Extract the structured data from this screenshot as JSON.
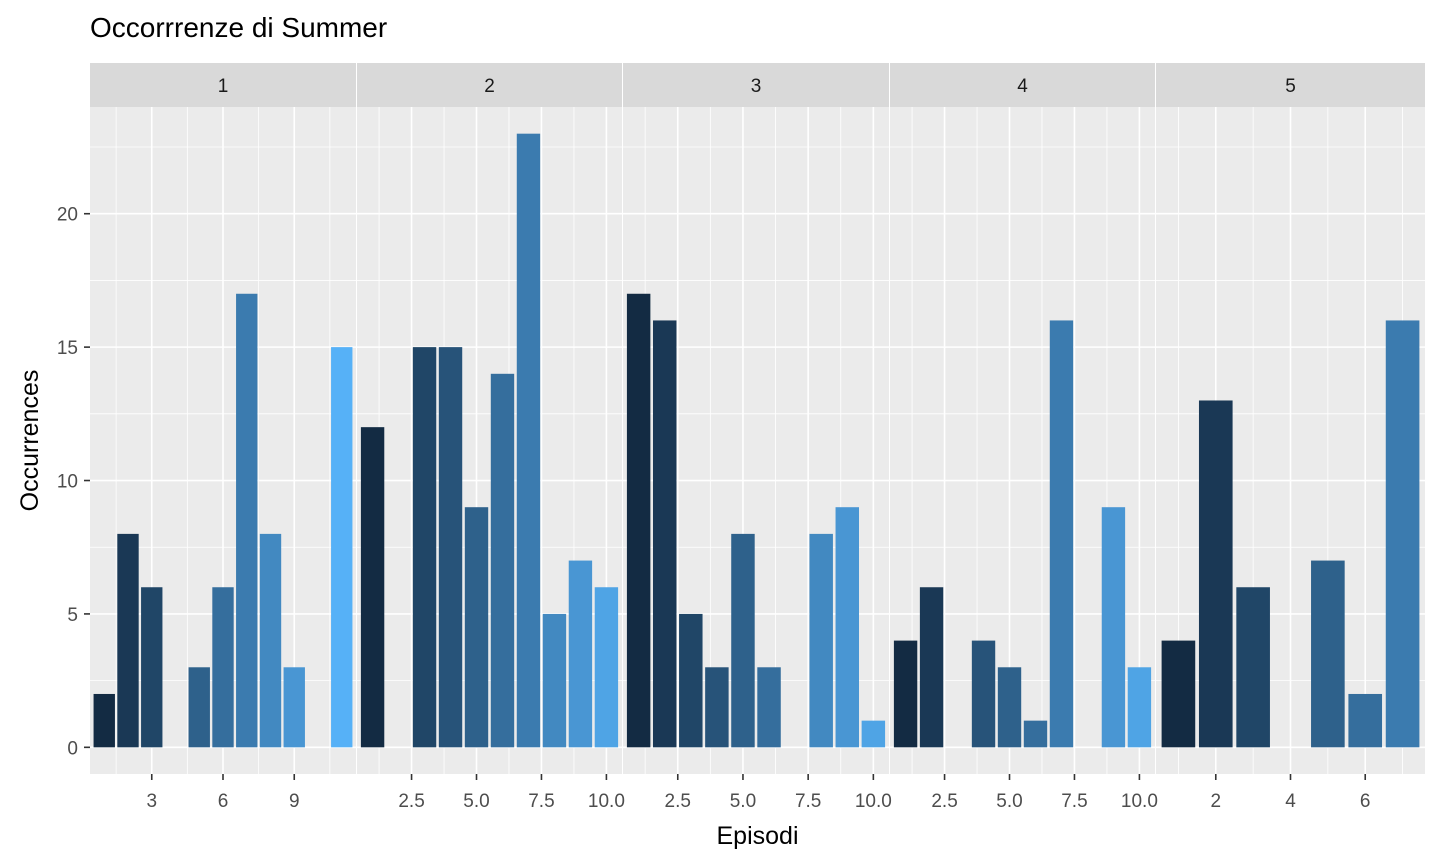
{
  "chart_data": {
    "type": "bar",
    "title": "Occorrrenze di Summer",
    "xlabel": "Episodi",
    "ylabel": "Occurrences",
    "ylim": [
      -1,
      24
    ],
    "yticks": [
      0,
      5,
      10,
      15,
      20
    ],
    "grid": true,
    "facet_by": "season",
    "fill": "gradient from dark navy (low episode number) to light blue (high episode number)",
    "colors": {
      "dark": "#132b43",
      "light": "#56b1f7",
      "panel": "#ebebeb",
      "strip": "#d9d9d9",
      "grid": "#ffffff"
    },
    "panels": [
      {
        "season": "1",
        "xlim": [
          0.4,
          11.6
        ],
        "xticks": [
          "3",
          "6",
          "9"
        ],
        "xtick_values": [
          3,
          6,
          9
        ],
        "x": [
          1,
          2,
          3,
          5,
          6,
          7,
          8,
          9,
          11
        ],
        "values": [
          2,
          8,
          6,
          3,
          6,
          17,
          8,
          3,
          15
        ]
      },
      {
        "season": "2",
        "xlim": [
          0.4,
          10.6
        ],
        "xticks": [
          "2.5",
          "5.0",
          "7.5",
          "10.0"
        ],
        "xtick_values": [
          2.5,
          5,
          7.5,
          10
        ],
        "x": [
          1,
          3,
          4,
          5,
          6,
          7,
          8,
          9,
          10
        ],
        "values": [
          12,
          15,
          15,
          9,
          14,
          23,
          5,
          7,
          6
        ]
      },
      {
        "season": "3",
        "xlim": [
          0.4,
          10.6
        ],
        "xticks": [
          "2.5",
          "5.0",
          "7.5",
          "10.0"
        ],
        "xtick_values": [
          2.5,
          5,
          7.5,
          10
        ],
        "x": [
          1,
          2,
          3,
          4,
          5,
          6,
          8,
          9,
          10
        ],
        "values": [
          17,
          16,
          5,
          3,
          8,
          3,
          8,
          9,
          1
        ]
      },
      {
        "season": "4",
        "xlim": [
          0.4,
          10.6
        ],
        "xticks": [
          "2.5",
          "5.0",
          "7.5",
          "10.0"
        ],
        "xtick_values": [
          2.5,
          5,
          7.5,
          10
        ],
        "x": [
          1,
          2,
          4,
          5,
          6,
          7,
          9,
          10
        ],
        "values": [
          4,
          6,
          4,
          3,
          1,
          16,
          9,
          3
        ]
      },
      {
        "season": "5",
        "xlim": [
          0.4,
          7.6
        ],
        "xticks": [
          "2",
          "4",
          "6"
        ],
        "xtick_values": [
          2,
          4,
          6
        ],
        "x": [
          1,
          2,
          3,
          5,
          6,
          7
        ],
        "values": [
          4,
          13,
          6,
          7,
          2,
          16
        ]
      }
    ]
  }
}
